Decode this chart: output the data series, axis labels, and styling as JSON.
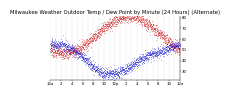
{
  "title": "Milwaukee Weather Outdoor Temp / Dew Point by Minute (24 Hours) (Alternate)",
  "background_color": "#ffffff",
  "red_color": "#cc0000",
  "blue_color": "#0000cc",
  "grid_color": "#bbbbbb",
  "ylim": [
    22,
    82
  ],
  "yticks": [
    30,
    40,
    50,
    60,
    70,
    80
  ],
  "ytick_labels": [
    "30",
    "40",
    "50",
    "60",
    "70",
    "80"
  ],
  "num_points": 1440,
  "dot_size": 0.12,
  "title_fontsize": 3.8,
  "tick_fontsize": 2.8
}
